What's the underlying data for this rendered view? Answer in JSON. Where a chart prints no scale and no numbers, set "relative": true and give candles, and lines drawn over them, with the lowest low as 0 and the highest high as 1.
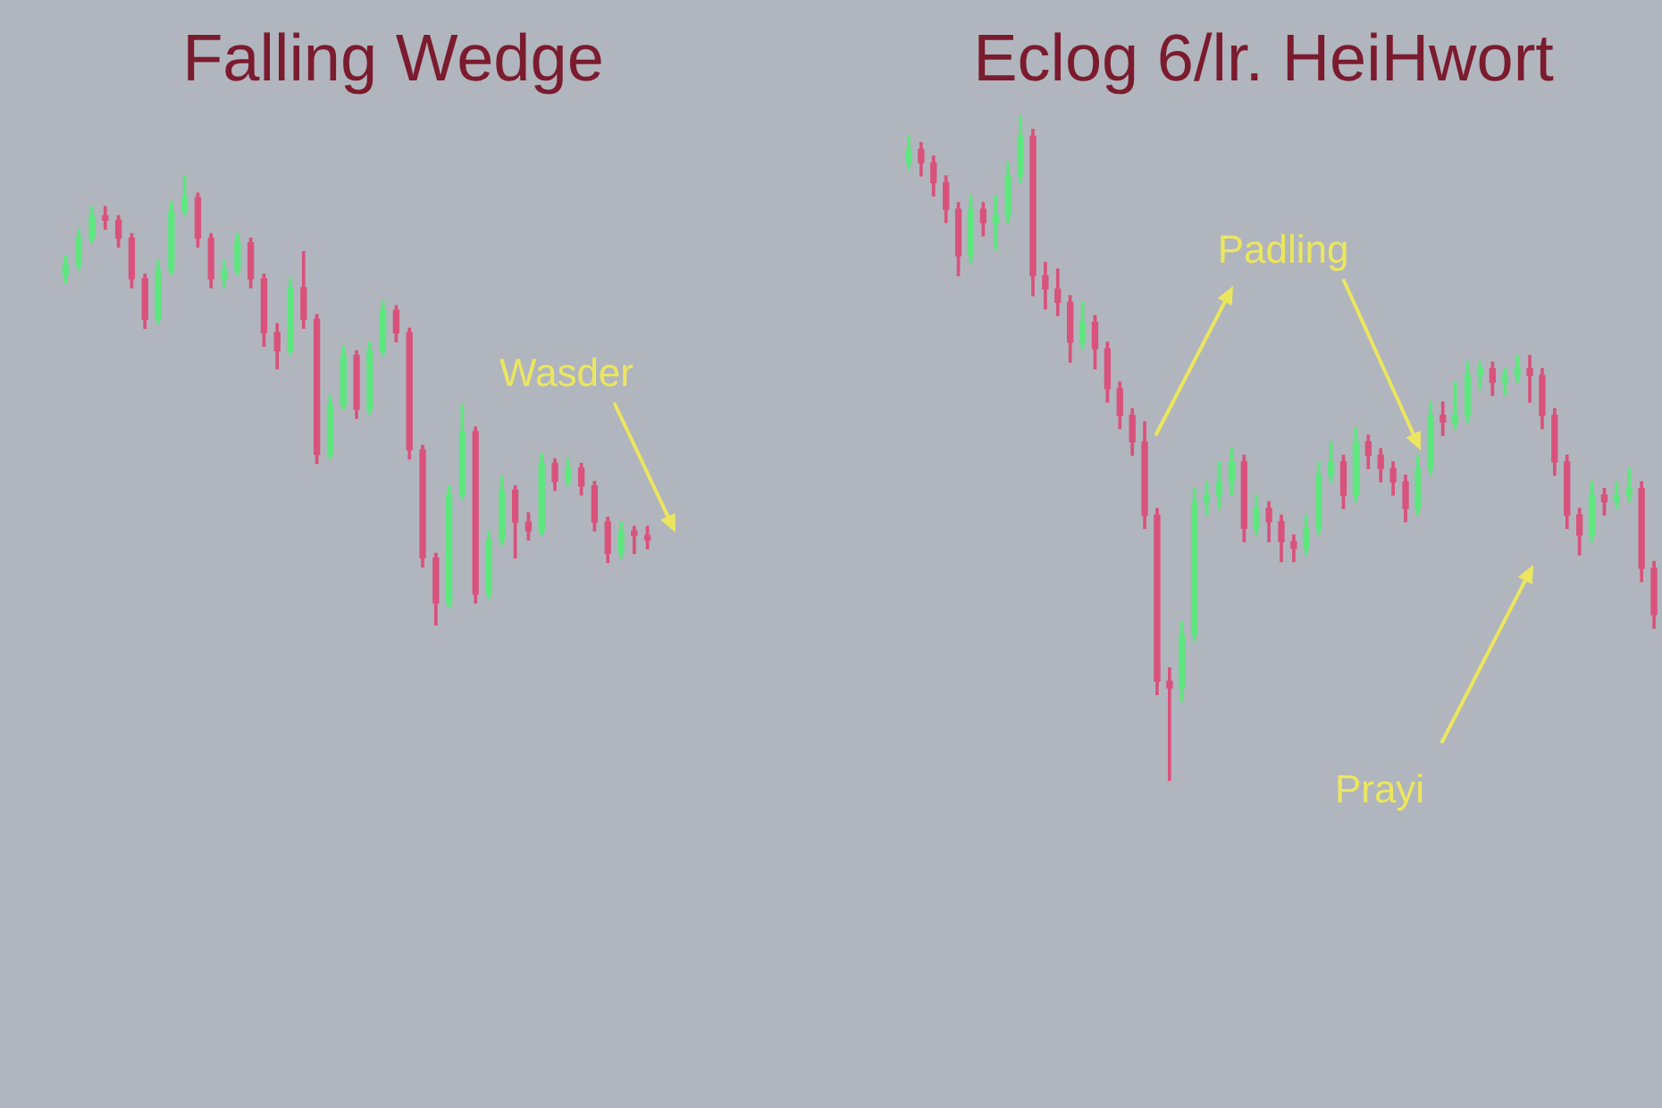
{
  "chart_data": [
    {
      "type": "candlestick",
      "title": "Falling Wedge",
      "annotations": [
        "Wasder"
      ],
      "relative": true,
      "categories": [
        null,
        null,
        null,
        null,
        null,
        null,
        null,
        null,
        null,
        null,
        null,
        null,
        null,
        null,
        null,
        null,
        null,
        null,
        null,
        null,
        null,
        null,
        null,
        null,
        null,
        null,
        null,
        null,
        null,
        null,
        null,
        null,
        null,
        null,
        null,
        null,
        null,
        null,
        null,
        null,
        null,
        null,
        null,
        null,
        null
      ],
      "ohlc": [
        [
          0.78,
          0.82,
          0.76,
          0.8
        ],
        [
          0.8,
          0.88,
          0.79,
          0.86
        ],
        [
          0.86,
          0.93,
          0.85,
          0.91
        ],
        [
          0.91,
          0.93,
          0.88,
          0.9
        ],
        [
          0.9,
          0.91,
          0.84,
          0.86
        ],
        [
          0.86,
          0.87,
          0.75,
          0.77
        ],
        [
          0.77,
          0.78,
          0.66,
          0.68
        ],
        [
          0.68,
          0.81,
          0.67,
          0.79
        ],
        [
          0.79,
          0.94,
          0.78,
          0.92
        ],
        [
          0.92,
          1,
          0.91,
          0.95
        ],
        [
          0.95,
          0.96,
          0.84,
          0.86
        ],
        [
          0.86,
          0.87,
          0.75,
          0.77
        ],
        [
          0.77,
          0.81,
          0.75,
          0.79
        ],
        [
          0.79,
          0.87,
          0.78,
          0.85
        ],
        [
          0.85,
          0.86,
          0.75,
          0.77
        ],
        [
          0.77,
          0.78,
          0.62,
          0.65
        ],
        [
          0.65,
          0.67,
          0.57,
          0.61
        ],
        [
          0.61,
          0.77,
          0.6,
          0.75
        ],
        [
          0.75,
          0.83,
          0.66,
          0.68
        ],
        [
          0.68,
          0.69,
          0.36,
          0.38
        ],
        [
          0.38,
          0.51,
          0.37,
          0.49
        ],
        [
          0.49,
          0.62,
          0.48,
          0.6
        ],
        [
          0.6,
          0.61,
          0.46,
          0.48
        ],
        [
          0.48,
          0.63,
          0.47,
          0.61
        ],
        [
          0.61,
          0.72,
          0.6,
          0.7
        ],
        [
          0.7,
          0.71,
          0.63,
          0.65
        ],
        [
          0.65,
          0.66,
          0.37,
          0.39
        ],
        [
          0.39,
          0.4,
          0.13,
          0.15
        ],
        [
          0.15,
          0.16,
          0,
          0.05
        ],
        [
          0.05,
          0.31,
          0.04,
          0.29
        ],
        [
          0.29,
          0.49,
          0.28,
          0.43
        ],
        [
          0.43,
          0.44,
          0.05,
          0.07
        ],
        [
          0.07,
          0.21,
          0.06,
          0.19
        ],
        [
          0.19,
          0.33,
          0.18,
          0.3
        ],
        [
          0.3,
          0.31,
          0.15,
          0.23
        ],
        [
          0.23,
          0.25,
          0.19,
          0.21
        ],
        [
          0.21,
          0.38,
          0.2,
          0.36
        ],
        [
          0.36,
          0.37,
          0.3,
          0.32
        ],
        [
          0.32,
          0.37,
          0.31,
          0.35
        ],
        [
          0.35,
          0.36,
          0.29,
          0.31
        ],
        [
          0.31,
          0.32,
          0.21,
          0.23
        ],
        [
          0.23,
          0.24,
          0.14,
          0.16
        ],
        [
          0.16,
          0.23,
          0.15,
          0.21
        ],
        [
          0.21,
          0.22,
          0.16,
          0.2
        ],
        [
          0.2,
          0.22,
          0.17,
          0.19
        ]
      ],
      "colors": [
        "#5ee67f",
        "#5ee67f",
        "#5ee67f",
        "#d9527c",
        "#d9527c",
        "#d9527c",
        "#d9527c",
        "#5ee67f",
        "#5ee67f",
        "#5ee67f",
        "#d9527c",
        "#d9527c",
        "#5ee67f",
        "#5ee67f",
        "#d9527c",
        "#d9527c",
        "#d9527c",
        "#5ee67f",
        "#d9527c",
        "#d9527c",
        "#5ee67f",
        "#5ee67f",
        "#d9527c",
        "#5ee67f",
        "#5ee67f",
        "#d9527c",
        "#d9527c",
        "#d9527c",
        "#d9527c",
        "#5ee67f",
        "#5ee67f",
        "#d9527c",
        "#5ee67f",
        "#5ee67f",
        "#d9527c",
        "#d9527c",
        "#5ee67f",
        "#d9527c",
        "#5ee67f",
        "#d9527c",
        "#d9527c",
        "#d9527c",
        "#5ee67f",
        "#d9527c",
        "#d9527c"
      ]
    },
    {
      "type": "candlestick",
      "title": "Eclog 6/lr. HeiHwort",
      "annotations": [
        "Padling",
        "Prayi"
      ],
      "relative": true,
      "categories": [
        null,
        null,
        null,
        null,
        null,
        null,
        null,
        null,
        null,
        null,
        null,
        null,
        null,
        null,
        null,
        null,
        null,
        null,
        null,
        null,
        null,
        null,
        null,
        null,
        null,
        null,
        null,
        null,
        null,
        null,
        null,
        null,
        null,
        null,
        null,
        null,
        null,
        null,
        null,
        null,
        null,
        null,
        null,
        null,
        null,
        null,
        null,
        null,
        null,
        null,
        null,
        null,
        null,
        null,
        null,
        null,
        null,
        null,
        null,
        null,
        null
      ],
      "ohlc": [
        [
          0.93,
          0.97,
          0.92,
          0.95
        ],
        [
          0.95,
          0.96,
          0.91,
          0.93
        ],
        [
          0.93,
          0.94,
          0.88,
          0.9
        ],
        [
          0.9,
          0.91,
          0.84,
          0.86
        ],
        [
          0.86,
          0.87,
          0.76,
          0.79
        ],
        [
          0.79,
          0.88,
          0.78,
          0.86
        ],
        [
          0.86,
          0.87,
          0.82,
          0.84
        ],
        [
          0.84,
          0.88,
          0.8,
          0.85
        ],
        [
          0.85,
          0.93,
          0.84,
          0.91
        ],
        [
          0.91,
          1,
          0.9,
          0.97
        ],
        [
          0.97,
          0.98,
          0.73,
          0.76
        ],
        [
          0.76,
          0.78,
          0.71,
          0.74
        ],
        [
          0.74,
          0.77,
          0.7,
          0.72
        ],
        [
          0.72,
          0.73,
          0.63,
          0.66
        ],
        [
          0.66,
          0.72,
          0.65,
          0.69
        ],
        [
          0.69,
          0.7,
          0.62,
          0.65
        ],
        [
          0.65,
          0.66,
          0.57,
          0.59
        ],
        [
          0.59,
          0.6,
          0.53,
          0.55
        ],
        [
          0.55,
          0.56,
          0.49,
          0.51
        ],
        [
          0.51,
          0.54,
          0.38,
          0.4
        ],
        [
          0.4,
          0.41,
          0.13,
          0.15
        ],
        [
          0.15,
          0.17,
          0,
          0.14
        ],
        [
          0.14,
          0.24,
          0.12,
          0.22
        ],
        [
          0.22,
          0.44,
          0.21,
          0.42
        ],
        [
          0.42,
          0.45,
          0.4,
          0.43
        ],
        [
          0.43,
          0.48,
          0.41,
          0.45
        ],
        [
          0.45,
          0.5,
          0.43,
          0.48
        ],
        [
          0.48,
          0.49,
          0.36,
          0.38
        ],
        [
          0.38,
          0.43,
          0.37,
          0.41
        ],
        [
          0.41,
          0.42,
          0.36,
          0.39
        ],
        [
          0.39,
          0.4,
          0.33,
          0.36
        ],
        [
          0.36,
          0.37,
          0.33,
          0.35
        ],
        [
          0.35,
          0.4,
          0.34,
          0.38
        ],
        [
          0.38,
          0.48,
          0.37,
          0.46
        ],
        [
          0.46,
          0.51,
          0.45,
          0.48
        ],
        [
          0.48,
          0.49,
          0.41,
          0.43
        ],
        [
          0.43,
          0.53,
          0.42,
          0.51
        ],
        [
          0.51,
          0.52,
          0.47,
          0.49
        ],
        [
          0.49,
          0.5,
          0.45,
          0.47
        ],
        [
          0.47,
          0.48,
          0.43,
          0.45
        ],
        [
          0.45,
          0.46,
          0.39,
          0.41
        ],
        [
          0.41,
          0.49,
          0.4,
          0.47
        ],
        [
          0.47,
          0.57,
          0.46,
          0.55
        ],
        [
          0.55,
          0.57,
          0.52,
          0.54
        ],
        [
          0.54,
          0.6,
          0.53,
          0.55
        ],
        [
          0.55,
          0.63,
          0.54,
          0.61
        ],
        [
          0.61,
          0.63,
          0.59,
          0.62
        ],
        [
          0.62,
          0.63,
          0.58,
          0.6
        ],
        [
          0.6,
          0.62,
          0.58,
          0.61
        ],
        [
          0.61,
          0.64,
          0.6,
          0.62
        ],
        [
          0.62,
          0.64,
          0.57,
          0.61
        ],
        [
          0.61,
          0.62,
          0.53,
          0.55
        ],
        [
          0.55,
          0.56,
          0.46,
          0.48
        ],
        [
          0.48,
          0.49,
          0.38,
          0.4
        ],
        [
          0.4,
          0.41,
          0.34,
          0.37
        ],
        [
          0.37,
          0.45,
          0.36,
          0.43
        ],
        [
          0.43,
          0.44,
          0.4,
          0.42
        ],
        [
          0.42,
          0.45,
          0.41,
          0.43
        ],
        [
          0.43,
          0.47,
          0.42,
          0.44
        ],
        [
          0.44,
          0.45,
          0.3,
          0.32
        ],
        [
          0.32,
          0.33,
          0.23,
          0.25
        ]
      ],
      "colors": [
        "#5ee67f",
        "#d9527c",
        "#d9527c",
        "#d9527c",
        "#d9527c",
        "#5ee67f",
        "#d9527c",
        "#5ee67f",
        "#5ee67f",
        "#5ee67f",
        "#d9527c",
        "#d9527c",
        "#d9527c",
        "#d9527c",
        "#5ee67f",
        "#d9527c",
        "#d9527c",
        "#d9527c",
        "#d9527c",
        "#d9527c",
        "#d9527c",
        "#d9527c",
        "#5ee67f",
        "#5ee67f",
        "#5ee67f",
        "#5ee67f",
        "#5ee67f",
        "#d9527c",
        "#5ee67f",
        "#d9527c",
        "#d9527c",
        "#d9527c",
        "#5ee67f",
        "#5ee67f",
        "#5ee67f",
        "#d9527c",
        "#5ee67f",
        "#d9527c",
        "#d9527c",
        "#d9527c",
        "#d9527c",
        "#5ee67f",
        "#5ee67f",
        "#d9527c",
        "#5ee67f",
        "#5ee67f",
        "#5ee67f",
        "#d9527c",
        "#5ee67f",
        "#5ee67f",
        "#d9527c",
        "#d9527c",
        "#d9527c",
        "#d9527c",
        "#d9527c",
        "#5ee67f",
        "#d9527c",
        "#5ee67f",
        "#5ee67f",
        "#d9527c",
        "#d9527c"
      ]
    }
  ]
}
